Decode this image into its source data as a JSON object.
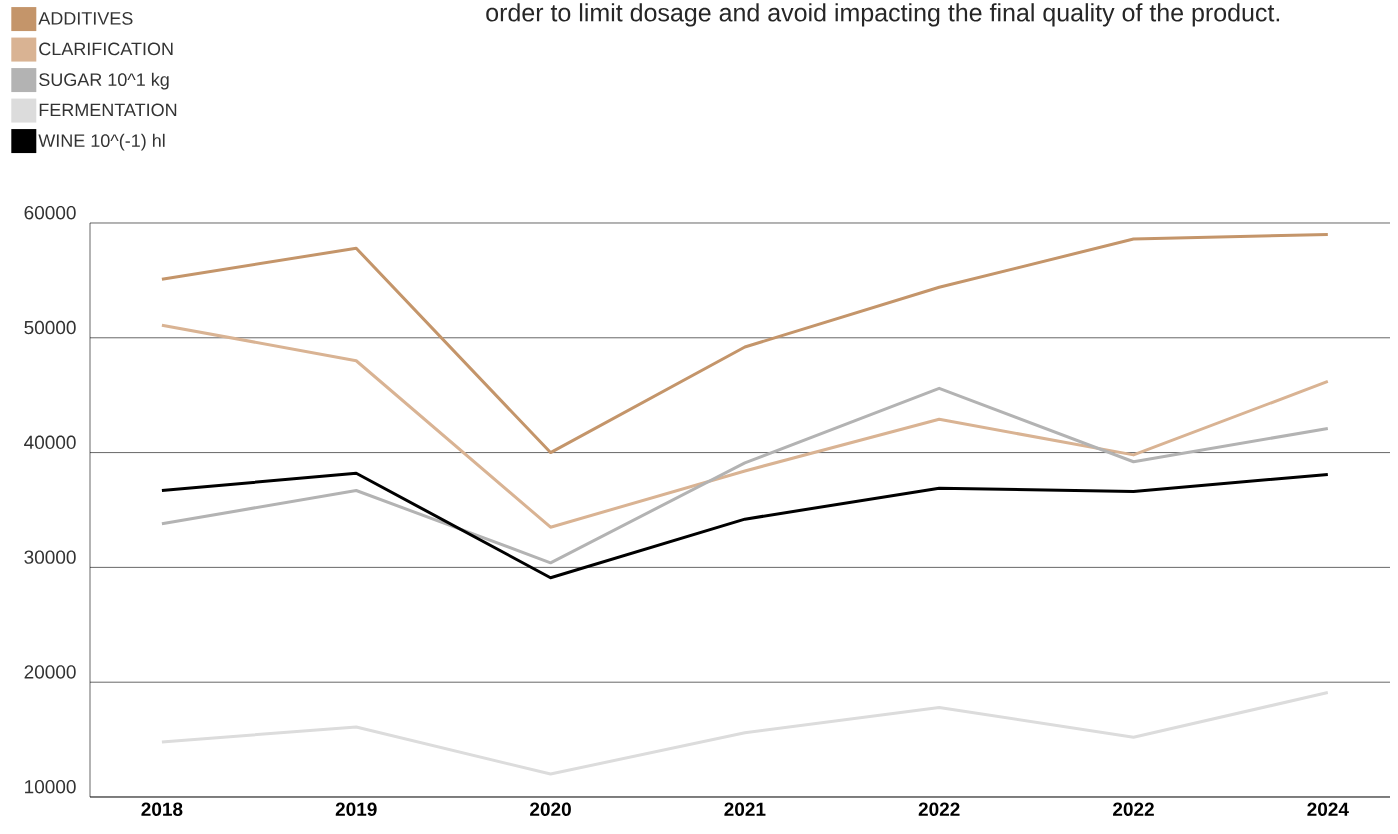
{
  "chart_data": {
    "type": "line",
    "categories": [
      "2018",
      "2019",
      "2020",
      "2021",
      "2022",
      "2022",
      "2024"
    ],
    "series": [
      {
        "name": "ADDITIVES",
        "color": "#c4956a",
        "values": [
          55100,
          57800,
          40000,
          49200,
          54400,
          58600,
          59000
        ]
      },
      {
        "name": "CLARIFICATION",
        "color": "#d9b393",
        "values": [
          51100,
          48000,
          33500,
          38400,
          42900,
          39800,
          46200
        ]
      },
      {
        "name": "SUGAR 10^1 kg",
        "color": "#b3b3b3",
        "values": [
          33800,
          36700,
          30400,
          39100,
          45600,
          39200,
          42100
        ]
      },
      {
        "name": "FERMENTATION",
        "color": "#dcdcdc",
        "values": [
          14800,
          16100,
          12000,
          15600,
          17800,
          15200,
          19100
        ]
      },
      {
        "name": "WINE 10^(-1) hl",
        "color": "#000000",
        "values": [
          36700,
          38200,
          29100,
          34200,
          36900,
          36600,
          38100
        ]
      }
    ],
    "ylim": [
      10000,
      60000
    ],
    "yticks": [
      10000,
      20000,
      30000,
      40000,
      50000,
      60000
    ],
    "grid": "y",
    "legend": "top left",
    "line_style": "solid",
    "annotations": [
      "order to limit dosage and avoid impacting the final quality of the product."
    ]
  }
}
